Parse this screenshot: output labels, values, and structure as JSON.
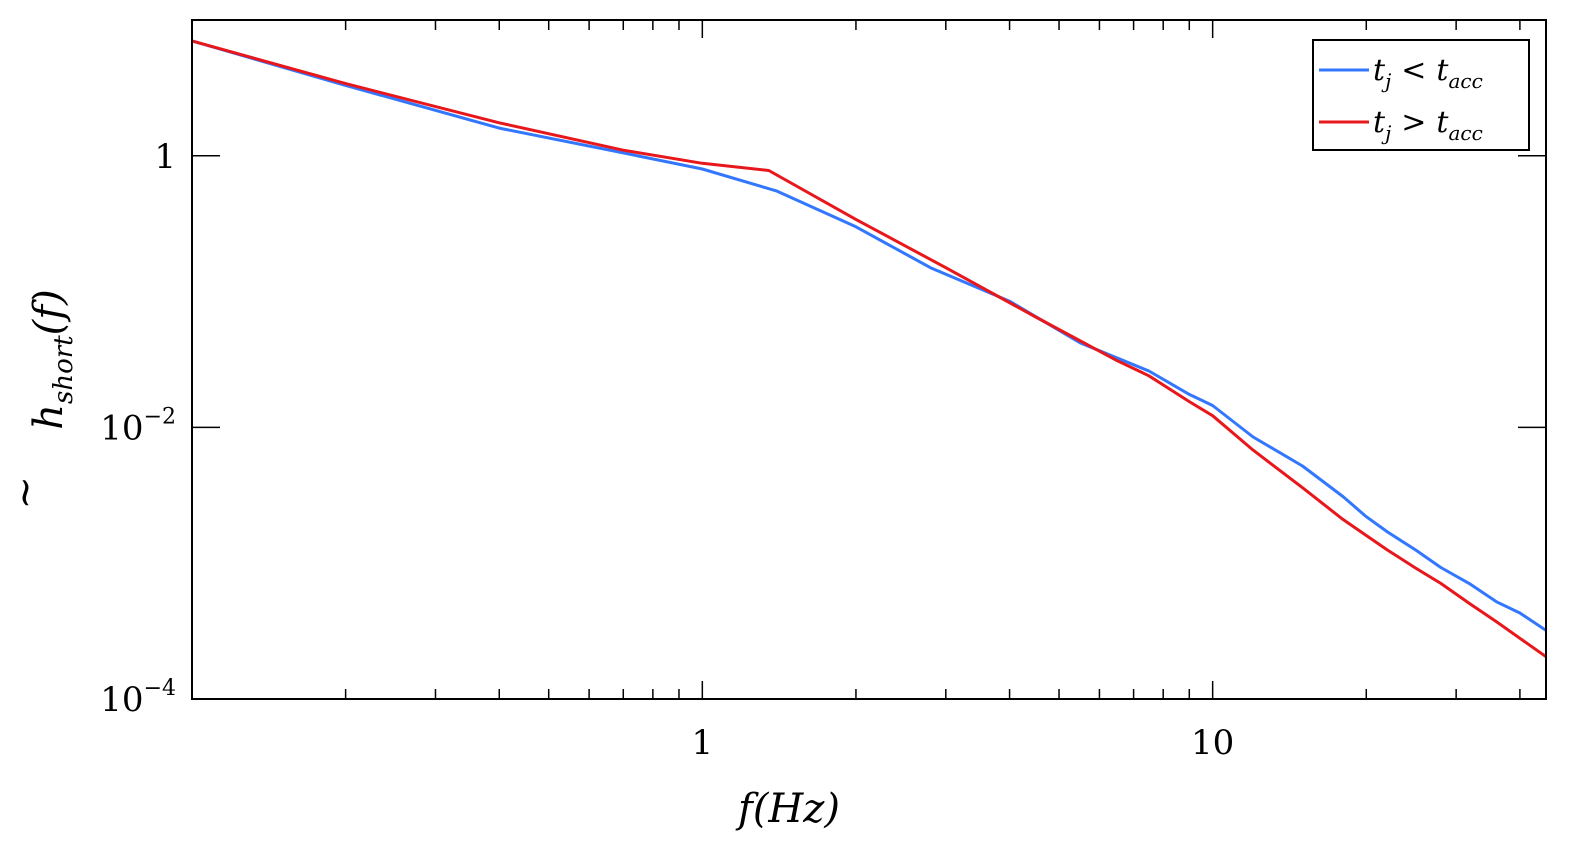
{
  "chart_data": {
    "type": "line",
    "xscale": "log",
    "yscale": "log",
    "xlim": [
      0.1,
      45
    ],
    "ylim": [
      0.0001,
      10
    ],
    "xlabel": {
      "main": "f",
      "paren": "(Hz)"
    },
    "ylabel": {
      "main": "h",
      "sub": "short",
      "paren": "(f)"
    },
    "xticks": [
      {
        "value": 1,
        "label": "1"
      },
      {
        "value": 10,
        "label": "10"
      }
    ],
    "yticks": [
      {
        "value": 1,
        "label": "1",
        "exp": ""
      },
      {
        "value": 0.01,
        "label": "10",
        "exp": "−2"
      },
      {
        "value": 0.0001,
        "label": "10",
        "exp": "−4"
      }
    ],
    "grid": false,
    "legend_position": "top-right",
    "legend": [
      {
        "var": "t",
        "var_sub": "j",
        "op": "<",
        "rhs": "t",
        "rhs_sub": "acc"
      },
      {
        "var": "t",
        "var_sub": "j",
        "op": ">",
        "rhs": "t",
        "rhs_sub": "acc"
      }
    ],
    "series": [
      {
        "color": "#3377ff",
        "x": [
          0.1,
          0.2,
          0.4,
          0.7,
          1.0,
          1.4,
          2.0,
          2.8,
          4.0,
          5.5,
          7.5,
          9.0,
          10.0,
          12.0,
          15.0,
          18.0,
          20.0,
          22.0,
          25.0,
          28.0,
          32.0,
          36.0,
          40.0,
          45.0
        ],
        "y": [
          7.0,
          3.3,
          1.6,
          1.05,
          0.8,
          0.55,
          0.3,
          0.15,
          0.085,
          0.042,
          0.026,
          0.0175,
          0.0145,
          0.0085,
          0.0052,
          0.0031,
          0.0022,
          0.0017,
          0.00125,
          0.00093,
          0.0007,
          0.00052,
          0.00043,
          0.00032
        ]
      },
      {
        "color": "#e8171b",
        "x": [
          0.1,
          0.2,
          0.4,
          0.7,
          1.0,
          1.35,
          2.0,
          3.0,
          4.5,
          6.5,
          7.5,
          9.0,
          10.0,
          12.0,
          15.0,
          18.0,
          20.0,
          22.0,
          25.0,
          28.0,
          32.0,
          36.0,
          40.0,
          45.0
        ],
        "y": [
          7.0,
          3.4,
          1.75,
          1.1,
          0.88,
          0.78,
          0.34,
          0.15,
          0.065,
          0.031,
          0.024,
          0.0155,
          0.0122,
          0.0068,
          0.0036,
          0.0021,
          0.0016,
          0.00125,
          0.00092,
          0.00071,
          0.0005,
          0.00037,
          0.00028,
          0.000205
        ]
      }
    ]
  }
}
